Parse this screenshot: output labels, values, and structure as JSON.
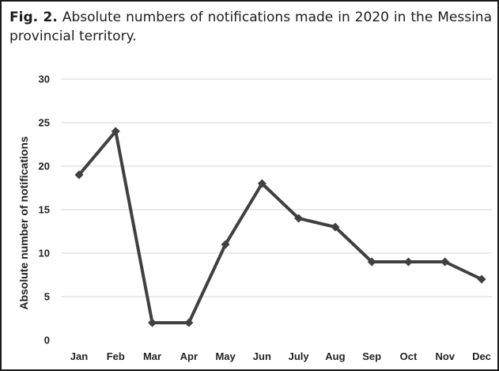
{
  "caption": {
    "label": "Fig. 2.",
    "text": "Absolute numbers of notifications made in 2020 in the Messina provincial territory."
  },
  "colors": {
    "line": "#404040",
    "grid": "#d4d4d4",
    "text": "#222222",
    "border": "#1a1a1a"
  },
  "chart_data": {
    "type": "line",
    "title": "",
    "xlabel": "",
    "ylabel": "Absolute number of notifications",
    "categories": [
      "Jan",
      "Feb",
      "Mar",
      "Apr",
      "May",
      "Jun",
      "July",
      "Aug",
      "Sep",
      "Oct",
      "Nov",
      "Dec"
    ],
    "series": [
      {
        "values": [
          19,
          24,
          2,
          2,
          11,
          18,
          14,
          13,
          9,
          9,
          9,
          7
        ]
      }
    ],
    "ylim": [
      0,
      30
    ],
    "yticks": [
      0,
      5,
      10,
      15,
      20,
      25,
      30
    ],
    "grid": "horizontal",
    "marker": "diamond",
    "legend": "none"
  }
}
